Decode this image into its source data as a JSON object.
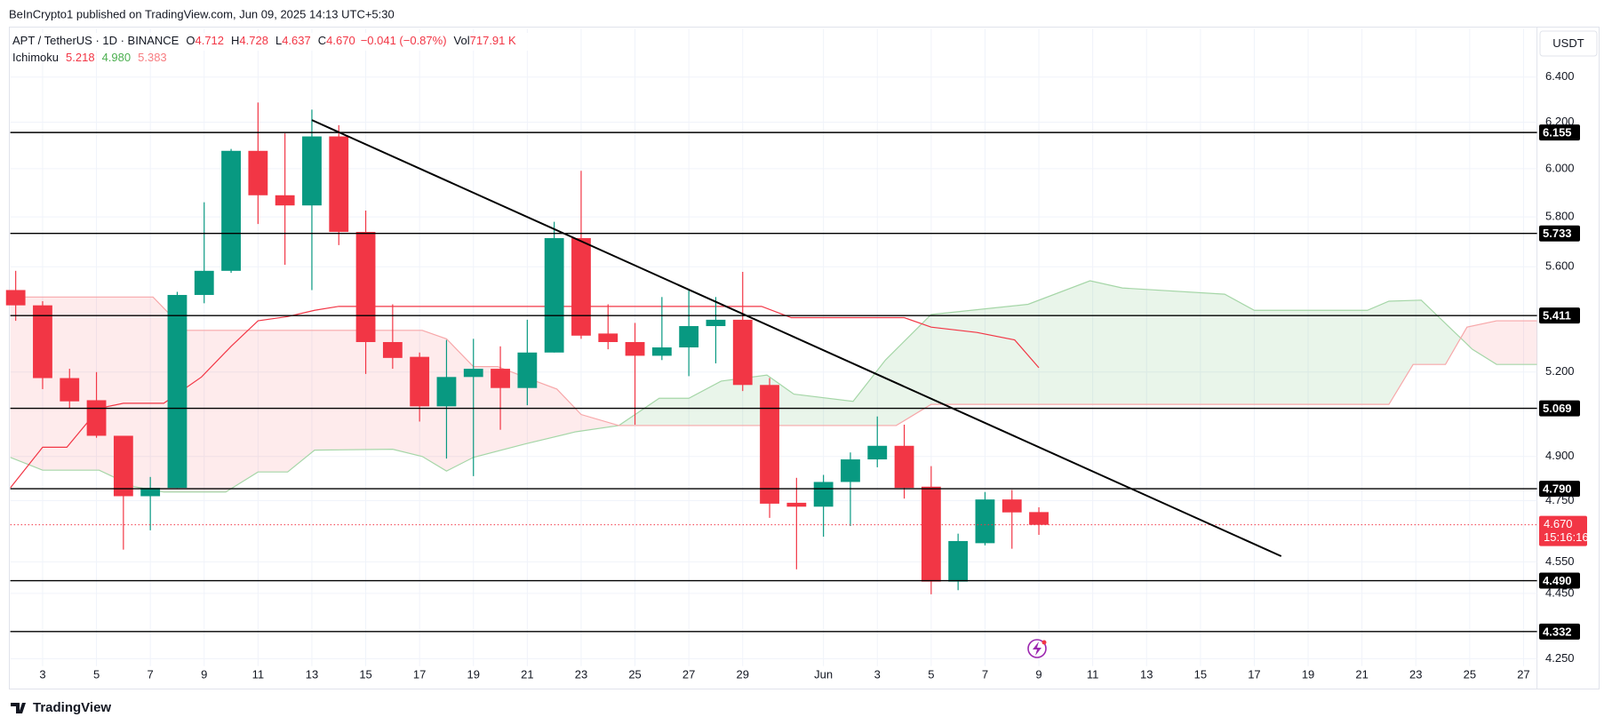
{
  "header": {
    "published": "BeInCrypto1 published on TradingView.com, Jun 09, 2025 14:13 UTC+5:30",
    "symbol": "APT / TetherUS · 1D · BINANCE",
    "ohlc": [
      {
        "key": "O",
        "value": "4.712"
      },
      {
        "key": "H",
        "value": "4.728"
      },
      {
        "key": "L",
        "value": "4.637"
      },
      {
        "key": "C",
        "value": "4.670"
      }
    ],
    "change": "−0.041 (−0.87%)",
    "volume": {
      "key": "Vol",
      "value": "717.91 K"
    }
  },
  "footer": {
    "brand": "TradingView"
  },
  "chart_data": {
    "type": "candlestick",
    "currency": "USDT",
    "log_scale": true,
    "grid": true,
    "xlim": [
      0.8,
      57.5
    ],
    "ylim": [
      4.228,
      6.621
    ],
    "xticks": [
      {
        "value": 2,
        "label": "3"
      },
      {
        "value": 4,
        "label": "5"
      },
      {
        "value": 6,
        "label": "7"
      },
      {
        "value": 8,
        "label": "9"
      },
      {
        "value": 10,
        "label": "11"
      },
      {
        "value": 12,
        "label": "13"
      },
      {
        "value": 14,
        "label": "15"
      },
      {
        "value": 16,
        "label": "17"
      },
      {
        "value": 18,
        "label": "19"
      },
      {
        "value": 20,
        "label": "21"
      },
      {
        "value": 22,
        "label": "23"
      },
      {
        "value": 24,
        "label": "25"
      },
      {
        "value": 26,
        "label": "27"
      },
      {
        "value": 28,
        "label": "29"
      },
      {
        "value": 31,
        "label": "Jun"
      },
      {
        "value": 33,
        "label": "3"
      },
      {
        "value": 35,
        "label": "5"
      },
      {
        "value": 37,
        "label": "7"
      },
      {
        "value": 39,
        "label": "9"
      },
      {
        "value": 41,
        "label": "11"
      },
      {
        "value": 43,
        "label": "13"
      },
      {
        "value": 45,
        "label": "15"
      },
      {
        "value": 47,
        "label": "17"
      },
      {
        "value": 49,
        "label": "19"
      },
      {
        "value": 51,
        "label": "21"
      },
      {
        "value": 53,
        "label": "23"
      },
      {
        "value": 55,
        "label": "25"
      },
      {
        "value": 57,
        "label": "27"
      }
    ],
    "yticks": [
      {
        "value": 6.4,
        "label": "6.400"
      },
      {
        "value": 6.2,
        "label": "6.200"
      },
      {
        "value": 6.0,
        "label": "6.000"
      },
      {
        "value": 5.8,
        "label": "5.800"
      },
      {
        "value": 5.6,
        "label": "5.600"
      },
      {
        "value": 5.2,
        "label": "5.200"
      },
      {
        "value": 4.9,
        "label": "4.900"
      },
      {
        "value": 4.75,
        "label": "4.750"
      },
      {
        "value": 4.55,
        "label": "4.550"
      },
      {
        "value": 4.45,
        "label": "4.450"
      },
      {
        "value": 4.25,
        "label": "4.250"
      }
    ],
    "up_color": "#089981",
    "down_color": "#f23645",
    "x": [
      1,
      2,
      3,
      4,
      5,
      6,
      7,
      8,
      9,
      10,
      11,
      12,
      13,
      14,
      15,
      16,
      17,
      18,
      19,
      20,
      21,
      22,
      23,
      24,
      25,
      26,
      27,
      28,
      29,
      30,
      31,
      32,
      33,
      34,
      35,
      36,
      37,
      38,
      39
    ],
    "open": [
      5.509,
      5.45,
      5.178,
      5.098,
      4.972,
      4.765,
      4.793,
      5.49,
      5.584,
      6.076,
      5.889,
      5.847,
      6.138,
      5.739,
      5.311,
      5.256,
      5.076,
      5.182,
      5.212,
      5.142,
      5.272,
      5.714,
      5.343,
      5.311,
      5.26,
      5.291,
      5.371,
      5.395,
      5.153,
      4.743,
      4.73,
      4.813,
      4.89,
      4.937,
      4.797,
      4.487,
      4.61,
      4.754,
      4.712
    ],
    "high": [
      5.584,
      5.466,
      5.212,
      5.2,
      4.972,
      4.83,
      5.502,
      5.86,
      6.084,
      6.286,
      6.151,
      6.255,
      6.187,
      5.826,
      5.454,
      5.272,
      5.319,
      5.323,
      5.295,
      5.395,
      5.78,
      5.991,
      5.454,
      5.383,
      5.482,
      5.513,
      5.482,
      5.58,
      5.178,
      4.827,
      4.837,
      4.914,
      5.04,
      5.011,
      4.867,
      4.641,
      4.779,
      4.786,
      4.728
    ],
    "low": [
      5.391,
      5.138,
      5.069,
      4.965,
      4.589,
      4.652,
      4.793,
      5.458,
      5.576,
      5.771,
      5.608,
      5.509,
      5.686,
      5.193,
      5.212,
      5.022,
      4.893,
      4.833,
      4.993,
      5.08,
      5.272,
      5.323,
      5.284,
      5.011,
      5.244,
      5.185,
      5.232,
      5.131,
      4.693,
      4.526,
      4.631,
      4.666,
      4.863,
      4.757,
      4.447,
      4.46,
      4.603,
      4.592,
      4.637
    ],
    "close": [
      5.45,
      5.178,
      5.094,
      4.972,
      4.765,
      4.793,
      5.49,
      5.584,
      6.076,
      5.889,
      5.847,
      6.138,
      5.739,
      5.311,
      5.252,
      5.076,
      5.182,
      5.212,
      5.142,
      5.272,
      5.714,
      5.335,
      5.311,
      5.26,
      5.291,
      5.371,
      5.395,
      5.153,
      4.74,
      4.73,
      4.813,
      4.89,
      4.937,
      4.793,
      4.487,
      4.617,
      4.754,
      4.711,
      4.67
    ],
    "levels": [
      6.155,
      5.733,
      5.411,
      5.069,
      {
        "value": 4.79,
        "label": "4.790"
      },
      {
        "value": 4.49,
        "label": "4.490"
      },
      4.332
    ],
    "level_color": "#000000",
    "last_price": {
      "value": 4.67,
      "label": "4.670",
      "countdown": "15:16:16",
      "color": "#f23645"
    },
    "trendline": {
      "x": [
        12.0,
        48.0
      ],
      "values": [
        6.209,
        4.568
      ],
      "color": "#000000"
    },
    "ichimoku": {
      "name": "Ichimoku",
      "legend": [
        {
          "value": "5.218",
          "color": "#f23645"
        },
        {
          "value": "4.980",
          "color": "#4caf50"
        },
        {
          "value": "5.383",
          "color": "#f77c80"
        }
      ],
      "base_line": {
        "color": "#f23645",
        "x": [
          0.8,
          2.0,
          2.9,
          4.1,
          5.0,
          6.5,
          7.9,
          9.0,
          10.0,
          11.1,
          12.1,
          13.0,
          28.7,
          29.8,
          34.0,
          35.0,
          36.7,
          38.1,
          39.0
        ],
        "values": [
          4.793,
          4.932,
          4.932,
          5.069,
          5.087,
          5.087,
          5.182,
          5.295,
          5.391,
          5.407,
          5.431,
          5.446,
          5.446,
          5.403,
          5.403,
          5.367,
          5.347,
          5.319,
          5.216
        ]
      },
      "span_a": {
        "color": "#a5d6a7",
        "fill": "rgba(76,175,80,0.12)",
        "x": [
          0.8,
          2.0,
          4.1,
          5.4,
          6.5,
          8.8,
          10.0,
          11.1,
          12.1,
          15.0,
          16.1,
          17.0,
          18.0,
          19.9,
          21.8,
          23.4,
          24.9,
          26.0,
          27.2,
          28.9,
          29.9,
          32.1,
          33.3,
          35.0,
          38.6,
          40.9,
          42.1,
          45.9,
          47.0,
          51.2,
          52.0,
          53.2,
          55.1,
          56.0,
          57.5
        ],
        "values": [
          4.897,
          4.853,
          4.853,
          4.797,
          4.779,
          4.779,
          4.847,
          4.847,
          4.922,
          4.925,
          4.9,
          4.85,
          4.897,
          4.943,
          4.986,
          5.008,
          5.105,
          5.105,
          5.167,
          5.189,
          5.12,
          5.094,
          5.244,
          5.415,
          5.454,
          5.545,
          5.517,
          5.493,
          5.431,
          5.431,
          5.466,
          5.47,
          5.284,
          5.228,
          5.228
        ]
      },
      "span_b": {
        "color": "#f7a7a9",
        "fill": "rgba(242,54,69,0.10)",
        "x": [
          0.8,
          6.1,
          7.3,
          16.1,
          17.0,
          18.0,
          18.9,
          19.9,
          21.1,
          22.0,
          23.4,
          33.7,
          35.0,
          52.0,
          52.9,
          54.1,
          54.9,
          56.0,
          57.5
        ],
        "values": [
          5.482,
          5.482,
          5.355,
          5.355,
          5.323,
          5.22,
          5.22,
          5.182,
          5.138,
          5.047,
          5.008,
          5.008,
          5.083,
          5.083,
          5.228,
          5.228,
          5.367,
          5.391,
          5.391
        ]
      }
    }
  }
}
